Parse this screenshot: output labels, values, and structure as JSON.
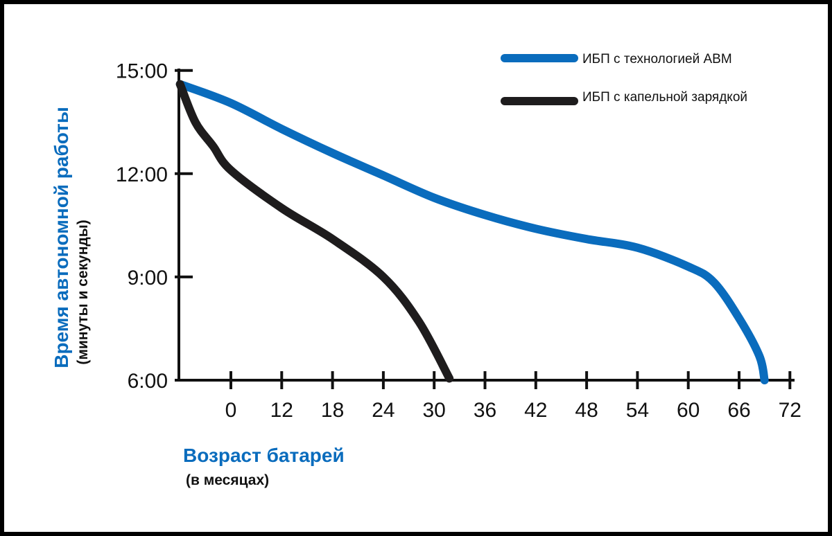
{
  "chart_data": {
    "type": "line",
    "xlabel": "Возраст батарей",
    "xlabel_unit": "(в месяцах)",
    "ylabel": "Время автономной работы",
    "ylabel_unit": "(минуты и секунды)",
    "x_tick_labels": [
      "0",
      "12",
      "18",
      "24",
      "30",
      "36",
      "42",
      "48",
      "54",
      "60",
      "66",
      "72"
    ],
    "y_tick_labels": [
      "6:00",
      "9:00",
      "12:00",
      "15:00"
    ],
    "y_ticks_minutes": [
      6,
      9,
      12,
      15
    ],
    "ylim_minutes": [
      6,
      15
    ],
    "legend_position": "top-right",
    "series": [
      {
        "name": "ИБП с технологией АВМ",
        "color": "#0a6cbd",
        "x_index": [
          -1,
          0,
          1,
          2,
          3,
          4,
          5,
          6,
          7,
          8,
          9,
          9.5,
          10,
          10.4,
          10.5
        ],
        "y_minutes": [
          14.6,
          14.05,
          13.3,
          12.6,
          11.95,
          11.3,
          10.8,
          10.4,
          10.1,
          9.85,
          9.3,
          8.85,
          7.8,
          6.7,
          6.0
        ]
      },
      {
        "name": "ИБП с капельной зарядкой",
        "color": "#1e1c1d",
        "x_index": [
          -1,
          -0.7,
          -0.35,
          0,
          1,
          2,
          3,
          3.7,
          4.3
        ],
        "y_minutes": [
          14.6,
          13.5,
          12.8,
          12.1,
          11.0,
          10.1,
          9.0,
          7.7,
          6.05
        ]
      }
    ]
  }
}
